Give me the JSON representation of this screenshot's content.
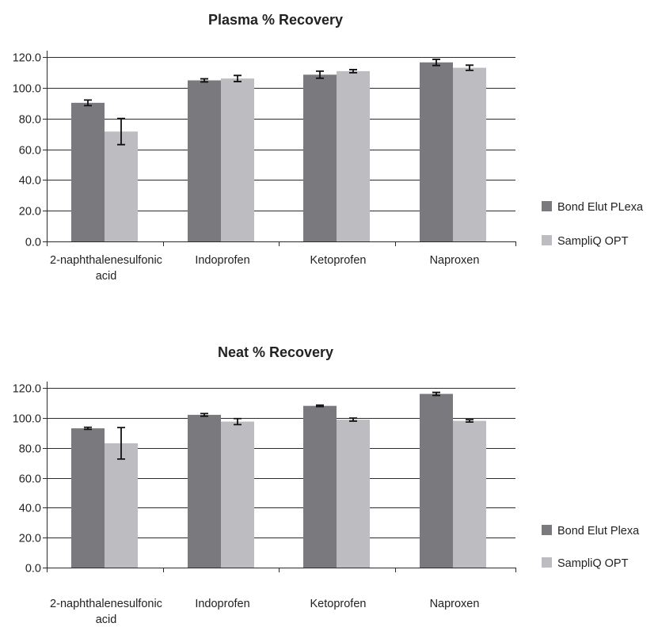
{
  "chart_data": [
    {
      "type": "bar",
      "title": "Plasma % Recovery",
      "categories": [
        [
          "2-naphthalenesulfonic",
          "acid"
        ],
        [
          "Indoprofen"
        ],
        [
          "Ketoprofen"
        ],
        [
          "Naproxen"
        ]
      ],
      "ylim": [
        0,
        120
      ],
      "yticks": [
        "0.0",
        "20.0",
        "40.0",
        "60.0",
        "80.0",
        "100.0",
        "120.0"
      ],
      "grid": true,
      "legend_position": "right",
      "series": [
        {
          "name": "Bond Elut PLexa",
          "color": "#7a7a7e",
          "values": [
            90.2,
            104.8,
            108.5,
            116.5
          ],
          "errors": [
            1.8,
            1.0,
            2.3,
            2.0
          ]
        },
        {
          "name": "SampliQ OPT",
          "color": "#bdbdc1",
          "values": [
            71.5,
            106.0,
            110.8,
            113.0
          ],
          "errors": [
            8.5,
            2.0,
            1.0,
            1.7
          ]
        }
      ]
    },
    {
      "type": "bar",
      "title": "Neat % Recovery",
      "categories": [
        [
          "2-naphthalenesulfonic",
          "acid"
        ],
        [
          "Indoprofen"
        ],
        [
          "Ketoprofen"
        ],
        [
          "Naproxen"
        ]
      ],
      "ylim": [
        0,
        120
      ],
      "yticks": [
        "0.0",
        "20.0",
        "40.0",
        "60.0",
        "80.0",
        "100.0",
        "120.0"
      ],
      "grid": true,
      "legend_position": "right",
      "series": [
        {
          "name": "Bond Elut Plexa",
          "color": "#7a7a7e",
          "values": [
            93.0,
            102.0,
            108.0,
            116.0
          ],
          "errors": [
            0.7,
            0.9,
            0.5,
            1.0
          ]
        },
        {
          "name": "SampliQ OPT",
          "color": "#bdbdc1",
          "values": [
            83.0,
            97.5,
            98.8,
            98.0
          ],
          "errors": [
            10.5,
            2.0,
            1.0,
            0.8
          ]
        }
      ]
    }
  ]
}
